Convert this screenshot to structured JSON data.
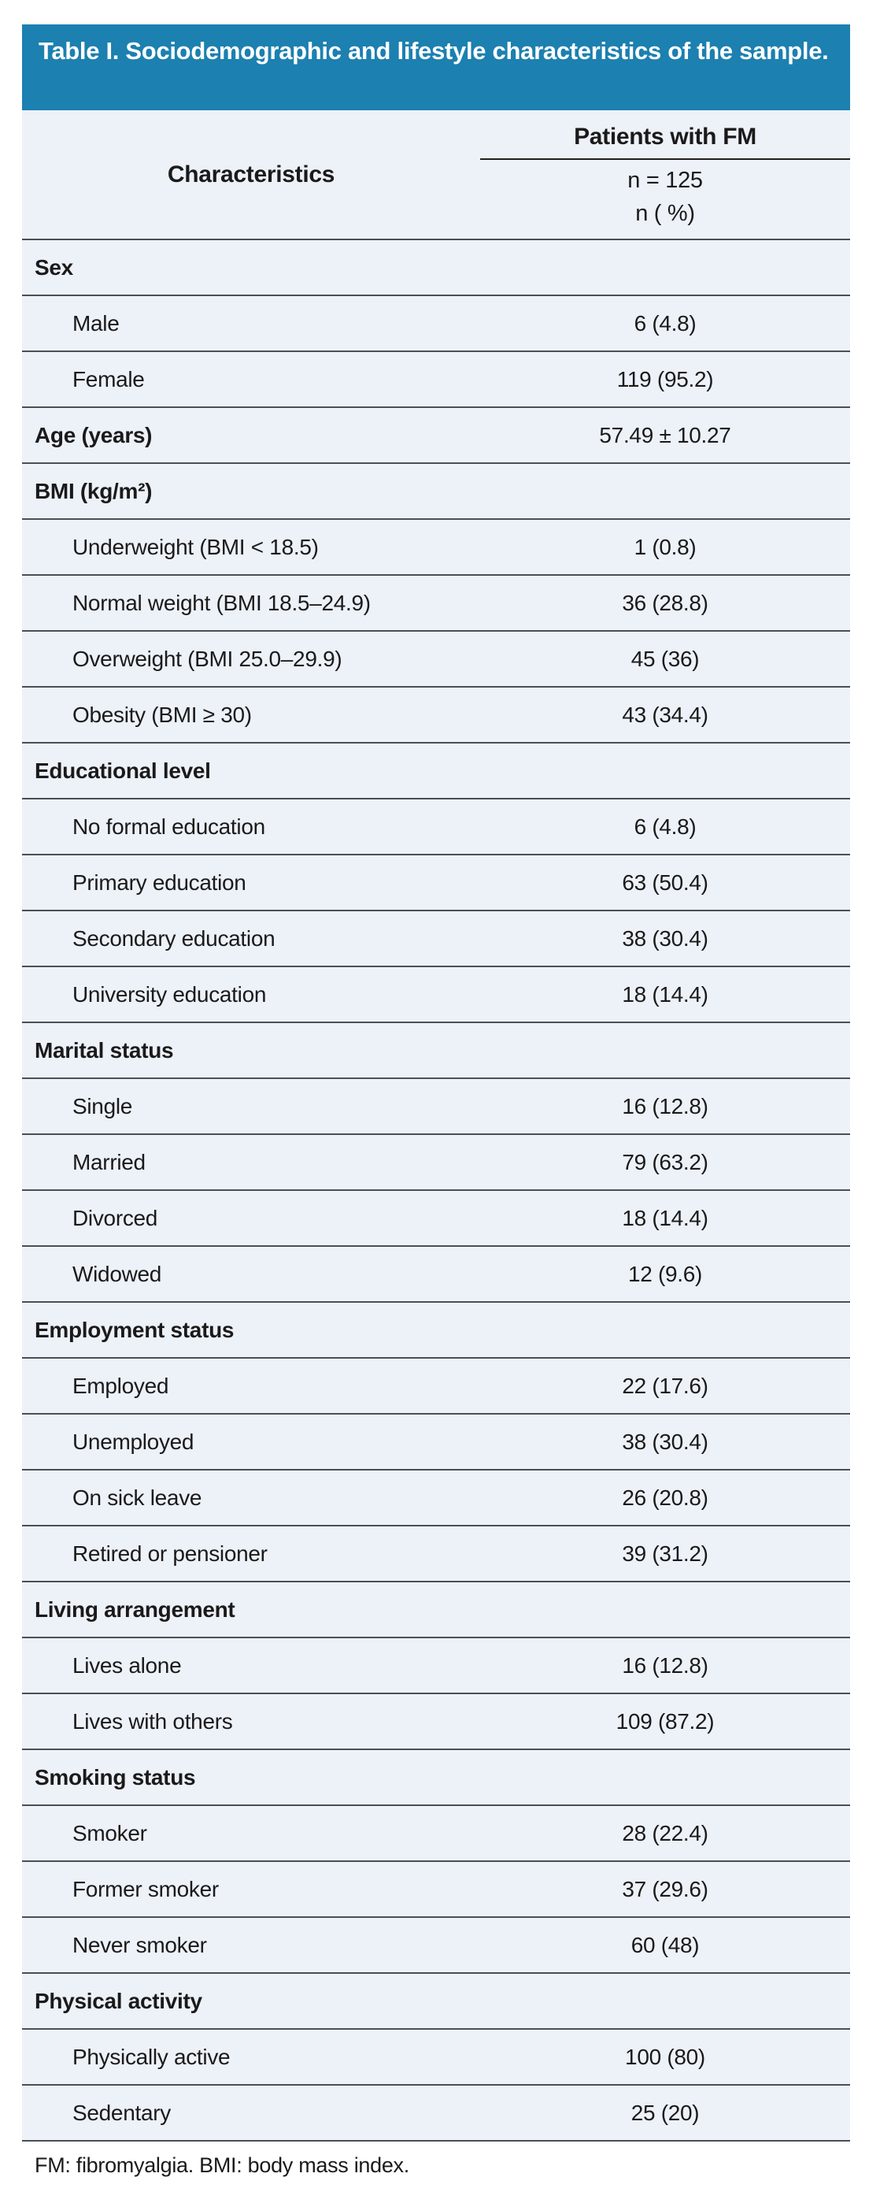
{
  "table": {
    "title": "Table I. Sociodemographic and lifestyle characteristics of the sample.",
    "header": {
      "characteristics": "Characteristics",
      "group": "Patients with FM",
      "sample_size": "n = 125",
      "unit": "n ( %)"
    },
    "rows": [
      {
        "type": "section",
        "label": "Sex",
        "value": ""
      },
      {
        "type": "item",
        "label": "Male",
        "value": "6 (4.8)"
      },
      {
        "type": "item",
        "label": "Female",
        "value": "119 (95.2)"
      },
      {
        "type": "section",
        "label": "Age (years)",
        "value": "57.49 ± 10.27"
      },
      {
        "type": "section",
        "label": "BMI (kg/m²)",
        "value": ""
      },
      {
        "type": "item",
        "label": "Underweight (BMI < 18.5)",
        "value": "1 (0.8)"
      },
      {
        "type": "item",
        "label": "Normal weight (BMI 18.5–24.9)",
        "value": "36 (28.8)"
      },
      {
        "type": "item",
        "label": "Overweight (BMI 25.0–29.9)",
        "value": "45 (36)"
      },
      {
        "type": "item",
        "label": "Obesity (BMI ≥ 30)",
        "value": "43 (34.4)"
      },
      {
        "type": "section",
        "label": "Educational level",
        "value": ""
      },
      {
        "type": "item",
        "label": "No formal education",
        "value": "6 (4.8)"
      },
      {
        "type": "item",
        "label": "Primary education",
        "value": "63 (50.4)"
      },
      {
        "type": "item",
        "label": "Secondary education",
        "value": "38 (30.4)"
      },
      {
        "type": "item",
        "label": "University education",
        "value": "18 (14.4)"
      },
      {
        "type": "section",
        "label": "Marital status",
        "value": ""
      },
      {
        "type": "item",
        "label": "Single",
        "value": "16 (12.8)"
      },
      {
        "type": "item",
        "label": "Married",
        "value": "79 (63.2)"
      },
      {
        "type": "item",
        "label": "Divorced",
        "value": "18 (14.4)"
      },
      {
        "type": "item",
        "label": "Widowed",
        "value": "12 (9.6)"
      },
      {
        "type": "section",
        "label": "Employment status",
        "value": ""
      },
      {
        "type": "item",
        "label": "Employed",
        "value": "22 (17.6)"
      },
      {
        "type": "item",
        "label": "Unemployed",
        "value": "38 (30.4)"
      },
      {
        "type": "item",
        "label": "On sick leave",
        "value": "26 (20.8)"
      },
      {
        "type": "item",
        "label": "Retired or pensioner",
        "value": "39 (31.2)"
      },
      {
        "type": "section",
        "label": "Living arrangement",
        "value": ""
      },
      {
        "type": "item",
        "label": "Lives alone",
        "value": "16 (12.8)"
      },
      {
        "type": "item",
        "label": "Lives with others",
        "value": "109 (87.2)"
      },
      {
        "type": "section",
        "label": "Smoking status",
        "value": ""
      },
      {
        "type": "item",
        "label": "Smoker",
        "value": "28 (22.4)"
      },
      {
        "type": "item",
        "label": "Former smoker",
        "value": "37 (29.6)"
      },
      {
        "type": "item",
        "label": "Never smoker",
        "value": "60 (48)"
      },
      {
        "type": "section",
        "label": "Physical activity",
        "value": ""
      },
      {
        "type": "item",
        "label": "Physically active",
        "value": "100 (80)"
      },
      {
        "type": "item",
        "label": "Sedentary",
        "value": "25 (20)"
      }
    ],
    "footnote": "FM: fibromyalgia. BMI: body mass index.",
    "colors": {
      "title_bg": "#1c80b0",
      "title_text": "#ffffff",
      "body_bg": "#edf1f8",
      "separator": "#4a4f55",
      "text": "#1a1a1a"
    }
  }
}
